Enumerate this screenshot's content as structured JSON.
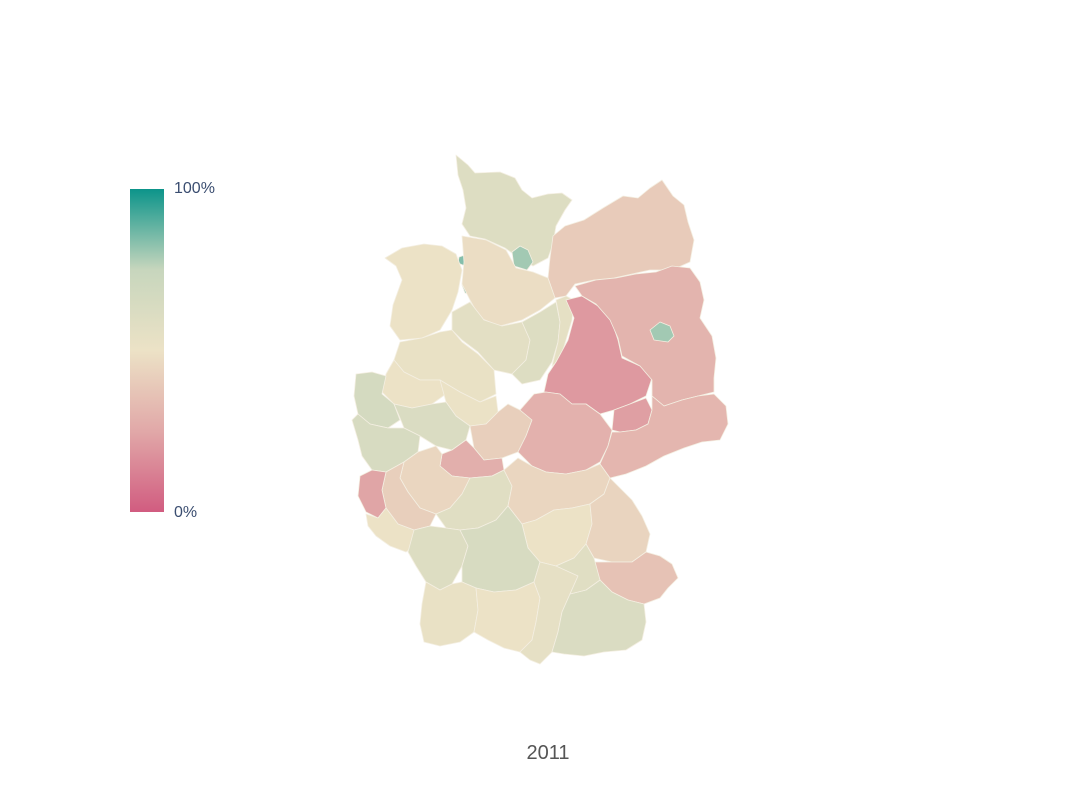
{
  "colorbar": {
    "max_label": "100%",
    "min_label": "0%",
    "stops": [
      "#d15c80",
      "#e1a8a8",
      "#ece2c6",
      "#c7d6bd",
      "#0c948a"
    ]
  },
  "frame_label": "2011",
  "chart_data": {
    "type": "choropleth",
    "year": "2011",
    "value_range": [
      0,
      1
    ],
    "regions": [
      {
        "id": "schleswig-holstein-region",
        "value": 0.6
      },
      {
        "id": "hamburg-region",
        "value": 0.8
      },
      {
        "id": "bremen-region",
        "value": 0.84
      },
      {
        "id": "bremerhaven-region",
        "value": 0.84
      },
      {
        "id": "mecklenburg-region",
        "value": 0.4
      },
      {
        "id": "niedersachsen-nw-region",
        "value": 0.5
      },
      {
        "id": "niedersachsen-ne-region",
        "value": 0.48
      },
      {
        "id": "niedersachsen-s-region",
        "value": 0.56
      },
      {
        "id": "niedersachsen-e-region",
        "value": 0.6
      },
      {
        "id": "niedersachsen-sw-region",
        "value": 0.52
      },
      {
        "id": "altmark-region",
        "value": 0.55
      },
      {
        "id": "sachsen-anhalt-region",
        "value": 0.2
      },
      {
        "id": "brandenburg-region",
        "value": 0.3
      },
      {
        "id": "berlin-region",
        "value": 0.8
      },
      {
        "id": "nrw-muenster-region",
        "value": 0.5
      },
      {
        "id": "nrw-detmold-region",
        "value": 0.51
      },
      {
        "id": "nrw-duesseldorf-region",
        "value": 0.66
      },
      {
        "id": "nrw-arnsberg-region",
        "value": 0.62
      },
      {
        "id": "nrw-koeln-region",
        "value": 0.64
      },
      {
        "id": "hessen-north-region",
        "value": 0.42
      },
      {
        "id": "hessen-middle-region",
        "value": 0.28
      },
      {
        "id": "hessen-south-region",
        "value": 0.45
      },
      {
        "id": "thueringen-region",
        "value": 0.29
      },
      {
        "id": "thueringen-east-region",
        "value": 0.22
      },
      {
        "id": "sachsen-region",
        "value": 0.31
      },
      {
        "id": "rlp-north-region",
        "value": 0.42
      },
      {
        "id": "rlp-west-region",
        "value": 0.24
      },
      {
        "id": "saarland-region",
        "value": 0.5
      },
      {
        "id": "unterfranken-region",
        "value": 0.58
      },
      {
        "id": "oberfranken-region",
        "value": 0.45
      },
      {
        "id": "mittelfranken-region",
        "value": 0.5
      },
      {
        "id": "oberpfalz-region",
        "value": 0.44
      },
      {
        "id": "niederbayern-region",
        "value": 0.36
      },
      {
        "id": "bw-north-region",
        "value": 0.6
      },
      {
        "id": "bw-middle-region",
        "value": 0.64
      },
      {
        "id": "bw-south-region",
        "value": 0.52
      },
      {
        "id": "bw-southeast-region",
        "value": 0.5
      },
      {
        "id": "schwaben-region",
        "value": 0.54
      },
      {
        "id": "oberbayern-region",
        "value": 0.62
      },
      {
        "id": "oberbayern-north-region",
        "value": 0.58
      }
    ]
  }
}
